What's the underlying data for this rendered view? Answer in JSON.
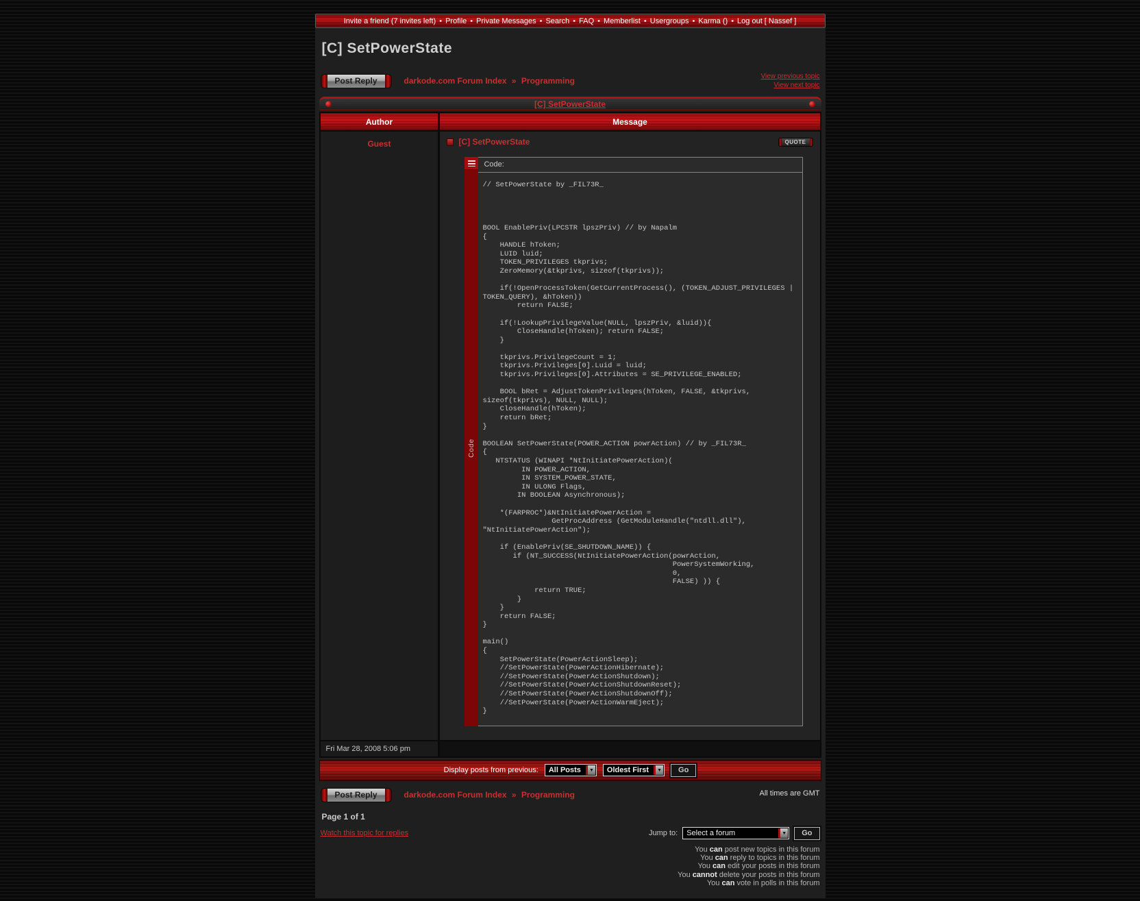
{
  "colors": {
    "accent_red": "#c01313",
    "link_red": "#c73030",
    "content_bg": "#1f1f1f",
    "code_bg": "#2b2b2b"
  },
  "nav": {
    "separator": "•",
    "items": [
      "Invite a friend (7 invites left)",
      "Profile",
      "Private Messages",
      "Search",
      "FAQ",
      "Memberlist",
      "Usergroups",
      "Karma ()",
      "Log out [ Nassef ]"
    ]
  },
  "page": {
    "title": "[C] SetPowerState"
  },
  "breadcrumb": {
    "index": "darkode.com Forum Index",
    "separator": "»",
    "section": "Programming"
  },
  "topic_nav": {
    "previous": "View previous topic",
    "next": "View next topic"
  },
  "buttons": {
    "post_reply": "Post Reply",
    "quote": "QUOTE",
    "go": "Go"
  },
  "topic_bar": {
    "title": "[C] SetPowerState"
  },
  "table": {
    "author_header": "Author",
    "message_header": "Message"
  },
  "post": {
    "author": "Guest",
    "subject": "[C] SetPowerState",
    "date": "Fri Mar 28, 2008 5:06 pm",
    "code_label": "Code:",
    "code_strip_label": "Code",
    "code_lines": [
      "// SetPowerState by _FIL73R_",
      "",
      "",
      "",
      "",
      "BOOL EnablePriv(LPCSTR lpszPriv) // by Napalm",
      "{",
      "    HANDLE hToken;",
      "    LUID luid;",
      "    TOKEN_PRIVILEGES tkprivs;",
      "    ZeroMemory(&tkprivs, sizeof(tkprivs));",
      "",
      "    if(!OpenProcessToken(GetCurrentProcess(), (TOKEN_ADJUST_PRIVILEGES |",
      "TOKEN_QUERY), &hToken))",
      "        return FALSE;",
      "",
      "    if(!LookupPrivilegeValue(NULL, lpszPriv, &luid)){",
      "        CloseHandle(hToken); return FALSE;",
      "    }",
      "",
      "    tkprivs.PrivilegeCount = 1;",
      "    tkprivs.Privileges[0].Luid = luid;",
      "    tkprivs.Privileges[0].Attributes = SE_PRIVILEGE_ENABLED;",
      "",
      "    BOOL bRet = AdjustTokenPrivileges(hToken, FALSE, &tkprivs,",
      "sizeof(tkprivs), NULL, NULL);",
      "    CloseHandle(hToken);",
      "    return bRet;",
      "}",
      "",
      "BOOLEAN SetPowerState(POWER_ACTION powrAction) // by _FIL73R_",
      "{",
      "   NTSTATUS (WINAPI *NtInitiatePowerAction)(",
      "         IN POWER_ACTION,",
      "         IN SYSTEM_POWER_STATE,",
      "         IN ULONG Flags,",
      "        IN BOOLEAN Asynchronous);",
      "",
      "    *(FARPROC*)&NtInitiatePowerAction =",
      "                GetProcAddress (GetModuleHandle(\"ntdll.dll\"),",
      "\"NtInitiatePowerAction\");",
      "",
      "    if (EnablePriv(SE_SHUTDOWN_NAME)) {",
      "       if (NT_SUCCESS(NtInitiatePowerAction(powrAction,",
      "                                            PowerSystemWorking,",
      "                                            0,",
      "                                            FALSE) )) {",
      "            return TRUE;",
      "        }",
      "    }",
      "    return FALSE;",
      "}",
      "",
      "main()",
      "{",
      "    SetPowerState(PowerActionSleep);",
      "    //SetPowerState(PowerActionHibernate);",
      "    //SetPowerState(PowerActionShutdown);",
      "    //SetPowerState(PowerActionShutdownReset);",
      "    //SetPowerState(PowerActionShutdownOff);",
      "    //SetPowerState(PowerActionWarmEject);",
      "}"
    ]
  },
  "display_bar": {
    "label": "Display posts from previous:",
    "posts_filter": "All Posts",
    "sort_order": "Oldest First"
  },
  "footer": {
    "all_times": "All times are GMT",
    "page_indicator": "Page 1 of 1",
    "watch_link": "Watch this topic for replies",
    "jump_label": "Jump to:",
    "jump_value": "Select a forum"
  },
  "permissions": [
    {
      "a": "You",
      "b": "can",
      "c": "post new topics in this forum"
    },
    {
      "a": "You",
      "b": "can",
      "c": "reply to topics in this forum"
    },
    {
      "a": "You",
      "b": "can",
      "c": "edit your posts in this forum"
    },
    {
      "a": "You",
      "b": "cannot",
      "c": "delete your posts in this forum"
    },
    {
      "a": "You",
      "b": "can",
      "c": "vote in polls in this forum"
    }
  ],
  "icons": {
    "dropdown_arrow": "▼"
  }
}
